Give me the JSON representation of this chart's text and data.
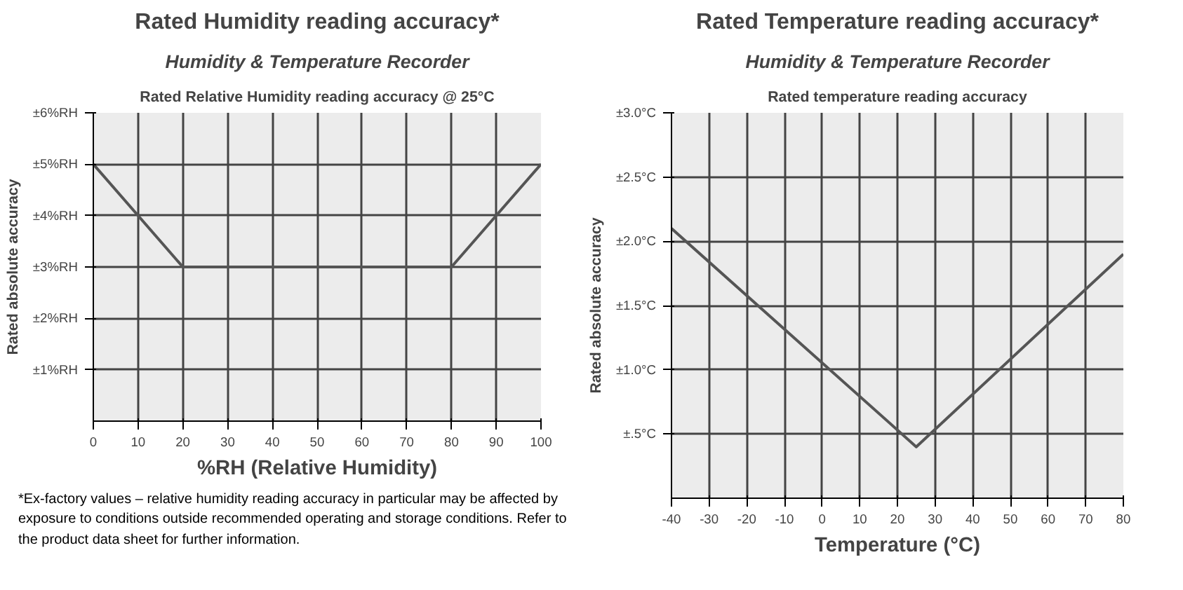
{
  "chart_data": [
    {
      "type": "line",
      "title": "Rated Humidity reading accuracy*",
      "subtitle": "Humidity & Temperature Recorder",
      "xlabel": "%RH (Relative Humidity)",
      "ylabel": "Rated absolute accuracy",
      "annotations": [
        "Rated Relative Humidity reading accuracy @ 25°C",
        "*Ex-factory values – relative humidity reading accuracy in particular may be affected by exposure to conditions outside recommended operating and storage conditions. Refer to the product data sheet for further information."
      ],
      "x": [
        0,
        20,
        80,
        100
      ],
      "series": [
        {
          "color": "#555555",
          "values": [
            5,
            3,
            3,
            5
          ]
        }
      ],
      "xlim": [
        0,
        100
      ],
      "xticks": [
        0,
        10,
        20,
        30,
        40,
        50,
        60,
        70,
        80,
        90,
        100
      ],
      "ylim": [
        0,
        6
      ],
      "yticks": [
        {
          "value": 1,
          "label": "±1%RH"
        },
        {
          "value": 2,
          "label": "±2%RH"
        },
        {
          "value": 3,
          "label": "±3%RH"
        },
        {
          "value": 4,
          "label": "±4%RH"
        },
        {
          "value": 5,
          "label": "±5%RH"
        },
        {
          "value": 6,
          "label": "±6%RH"
        }
      ],
      "grid": true
    },
    {
      "type": "line",
      "title": "Rated Temperature reading accuracy*",
      "subtitle": "Humidity & Temperature Recorder",
      "xlabel": "Temperature (°C)",
      "ylabel": "Rated absolute accuracy",
      "annotations": [
        "Rated temperature reading accuracy"
      ],
      "x": [
        -40,
        25,
        80
      ],
      "series": [
        {
          "color": "#555555",
          "values": [
            2.1,
            0.4,
            1.9
          ]
        }
      ],
      "xlim": [
        -40,
        80
      ],
      "xticks": [
        -40,
        -30,
        -20,
        -10,
        0,
        10,
        20,
        30,
        40,
        50,
        60,
        70,
        80
      ],
      "ylim": [
        0,
        3
      ],
      "yticks": [
        {
          "value": 0.5,
          "label": "±.5°C"
        },
        {
          "value": 1,
          "label": "±1.0°C"
        },
        {
          "value": 1.5,
          "label": "±1.5°C"
        },
        {
          "value": 2,
          "label": "±2.0°C"
        },
        {
          "value": 2.5,
          "label": "±2.5°C"
        },
        {
          "value": 3,
          "label": "±3.0°C"
        }
      ],
      "grid": true
    }
  ]
}
